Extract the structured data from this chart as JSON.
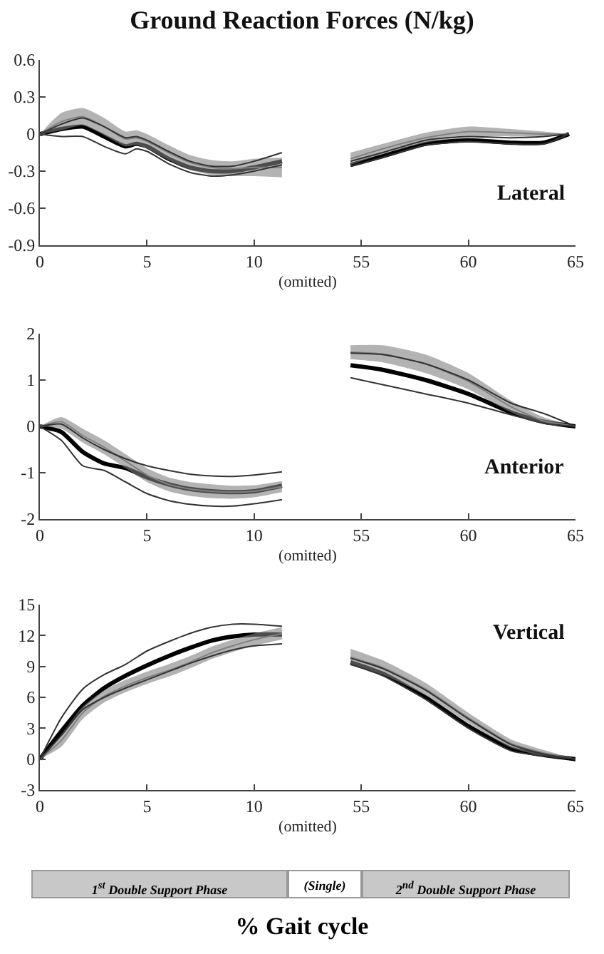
{
  "chart_data": [
    {
      "type": "line",
      "title": "Ground Reaction Forces (N/kg)",
      "xlabel": "(omitted)",
      "grid": false,
      "x": [
        0,
        1,
        2,
        3,
        4,
        4.5,
        5,
        6,
        7,
        8,
        9,
        10,
        11.3
      ],
      "xlim": [
        0,
        12.5
      ],
      "xticks": [
        0,
        5,
        10
      ],
      "ylim": [
        -0.9,
        0.6
      ],
      "yticks": [
        -0.9,
        -0.6,
        -0.3,
        0,
        0.3,
        0.6
      ],
      "series": [
        {
          "color": "#000000",
          "values": [
            0,
            0.04,
            0.06,
            -0.02,
            -0.1,
            -0.08,
            -0.1,
            -0.2,
            -0.27,
            -0.3,
            -0.3,
            -0.27,
            -0.22
          ]
        },
        {
          "color": "#808080",
          "values": [
            0,
            0.1,
            0.14,
            0.06,
            -0.04,
            -0.03,
            -0.06,
            -0.15,
            -0.23,
            -0.27,
            -0.28,
            -0.27,
            -0.27
          ],
          "lower": [
            0,
            0.03,
            0.07,
            -0.01,
            -0.1,
            -0.09,
            -0.12,
            -0.21,
            -0.29,
            -0.33,
            -0.34,
            -0.34,
            -0.35
          ],
          "upper": [
            0,
            0.17,
            0.21,
            0.13,
            0.02,
            0.03,
            0,
            -0.09,
            -0.17,
            -0.21,
            -0.22,
            -0.2,
            -0.19
          ]
        },
        {
          "color": "#333333",
          "values": [
            0,
            0.08,
            0.13,
            0.06,
            -0.03,
            -0.02,
            -0.05,
            -0.14,
            -0.22,
            -0.26,
            -0.26,
            -0.22,
            -0.15
          ]
        },
        {
          "color": "#333333",
          "values": [
            0,
            -0.02,
            -0.02,
            -0.1,
            -0.16,
            -0.12,
            -0.14,
            -0.24,
            -0.31,
            -0.34,
            -0.33,
            -0.3,
            -0.25
          ]
        }
      ]
    },
    {
      "type": "line",
      "annotations": [
        "Lateral"
      ],
      "grid": false,
      "tick_labels": "x",
      "x": [
        54.5,
        56,
        58,
        60,
        62,
        63.5,
        64.7
      ],
      "xlim": [
        52.5,
        65
      ],
      "xticks": [
        55,
        60,
        65
      ],
      "ylim": [
        -0.9,
        0.6
      ],
      "yticks": [
        -0.9,
        -0.6,
        -0.3,
        0,
        0.3,
        0.6
      ],
      "series": [
        {
          "color": "#000000",
          "values": [
            -0.25,
            -0.18,
            -0.08,
            -0.05,
            -0.07,
            -0.07,
            0
          ]
        },
        {
          "color": "#808080",
          "values": [
            -0.2,
            -0.12,
            -0.03,
            0.02,
            0.01,
            0,
            0
          ],
          "lower": [
            -0.25,
            -0.16,
            -0.07,
            -0.02,
            -0.02,
            -0.02,
            0
          ],
          "upper": [
            -0.15,
            -0.08,
            0.01,
            0.06,
            0.04,
            0.02,
            0
          ]
        },
        {
          "color": "#333333",
          "values": [
            -0.22,
            -0.15,
            -0.05,
            -0.02,
            -0.03,
            -0.02,
            0
          ]
        },
        {
          "color": "#333333",
          "values": [
            -0.26,
            -0.19,
            -0.09,
            -0.06,
            -0.08,
            -0.08,
            0
          ]
        }
      ]
    },
    {
      "type": "line",
      "xlabel": "(omitted)",
      "grid": false,
      "x": [
        0,
        1,
        2,
        3,
        4,
        5,
        6,
        7,
        8,
        9,
        10,
        11.3
      ],
      "xlim": [
        0,
        12.5
      ],
      "xticks": [
        0,
        5,
        10
      ],
      "ylim": [
        -2,
        2
      ],
      "yticks": [
        -2,
        -1,
        0,
        1,
        2
      ],
      "series": [
        {
          "color": "#000000",
          "values": [
            0,
            -0.12,
            -0.55,
            -0.8,
            -0.9,
            -1.1,
            -1.25,
            -1.35,
            -1.4,
            -1.42,
            -1.4,
            -1.28
          ]
        },
        {
          "color": "#808080",
          "values": [
            0,
            0.1,
            -0.2,
            -0.45,
            -0.75,
            -1.05,
            -1.25,
            -1.35,
            -1.4,
            -1.42,
            -1.4,
            -1.3
          ],
          "lower": [
            0,
            -0.05,
            -0.35,
            -0.6,
            -0.9,
            -1.2,
            -1.4,
            -1.5,
            -1.55,
            -1.56,
            -1.53,
            -1.42
          ],
          "upper": [
            0,
            0.2,
            -0.05,
            -0.3,
            -0.6,
            -0.9,
            -1.1,
            -1.2,
            -1.25,
            -1.28,
            -1.27,
            -1.18
          ]
        },
        {
          "color": "#333333",
          "values": [
            0,
            0.05,
            -0.25,
            -0.5,
            -0.7,
            -0.85,
            -0.95,
            -1.03,
            -1.07,
            -1.08,
            -1.05,
            -0.98
          ]
        },
        {
          "color": "#333333",
          "values": [
            0,
            -0.3,
            -0.85,
            -0.95,
            -1.2,
            -1.45,
            -1.6,
            -1.68,
            -1.72,
            -1.72,
            -1.67,
            -1.58
          ]
        }
      ]
    },
    {
      "type": "line",
      "annotations": [
        "Anterior"
      ],
      "grid": false,
      "tick_labels": "x",
      "x": [
        54.5,
        56,
        58,
        60,
        62,
        63.5,
        65
      ],
      "xlim": [
        52.5,
        65
      ],
      "xticks": [
        55,
        60,
        65
      ],
      "ylim": [
        -2,
        2
      ],
      "yticks": [
        -2,
        -1,
        0,
        1,
        2
      ],
      "series": [
        {
          "color": "#000000",
          "values": [
            1.32,
            1.22,
            1,
            0.7,
            0.3,
            0.1,
            0
          ]
        },
        {
          "color": "#808080",
          "values": [
            1.6,
            1.56,
            1.35,
            0.97,
            0.42,
            0.12,
            0
          ],
          "lower": [
            1.45,
            1.38,
            1.15,
            0.8,
            0.3,
            0.05,
            0
          ],
          "upper": [
            1.75,
            1.75,
            1.55,
            1.15,
            0.55,
            0.2,
            0
          ]
        },
        {
          "color": "#333333",
          "values": [
            1.58,
            1.55,
            1.35,
            1,
            0.5,
            0.28,
            0
          ]
        },
        {
          "color": "#333333",
          "values": [
            1.05,
            0.9,
            0.7,
            0.5,
            0.25,
            0.07,
            0
          ]
        }
      ]
    },
    {
      "type": "line",
      "xlabel": "(omitted)",
      "grid": false,
      "x": [
        0,
        1,
        2,
        3,
        4,
        5,
        6,
        7,
        8,
        9,
        10,
        11.3
      ],
      "xlim": [
        0,
        12.5
      ],
      "xticks": [
        0,
        5,
        10
      ],
      "ylim": [
        -3,
        15
      ],
      "yticks": [
        -3,
        0,
        3,
        6,
        9,
        12,
        15
      ],
      "series": [
        {
          "color": "#000000",
          "values": [
            0,
            2.7,
            5.2,
            6.9,
            8.1,
            9.1,
            10,
            10.8,
            11.5,
            11.9,
            12.1,
            12.1
          ]
        },
        {
          "color": "#808080",
          "values": [
            0,
            1.8,
            4.5,
            6.1,
            7.1,
            7.9,
            8.6,
            9.4,
            10.3,
            11,
            11.6,
            12.2
          ],
          "lower": [
            0,
            1.2,
            3.9,
            5.5,
            6.5,
            7.3,
            8,
            8.8,
            9.7,
            10.4,
            11,
            11.6
          ],
          "upper": [
            0,
            2.4,
            5.1,
            6.7,
            7.7,
            8.5,
            9.2,
            10,
            10.9,
            11.6,
            12.2,
            12.8
          ]
        },
        {
          "color": "#333333",
          "values": [
            0,
            4,
            6.8,
            8.2,
            9.2,
            10.5,
            11.4,
            12.2,
            12.8,
            13.1,
            13.1,
            12.9
          ]
        },
        {
          "color": "#333333",
          "values": [
            0,
            2.3,
            4.8,
            6,
            6.9,
            7.7,
            8.5,
            9.3,
            10,
            10.6,
            11,
            11.2
          ]
        }
      ]
    },
    {
      "type": "line",
      "annotations": [
        "Vertical",
        "1$^{st}$ Double Support Phase",
        "(Single)",
        "2$^{nd}$ Double Support Phase",
        "% Gait cycle"
      ],
      "grid": false,
      "tick_labels": "x",
      "x": [
        54.5,
        56,
        58,
        60,
        62,
        63.5,
        65
      ],
      "xlim": [
        52.5,
        65
      ],
      "xticks": [
        55,
        60,
        65
      ],
      "ylim": [
        -3,
        15
      ],
      "yticks": [
        -3,
        0,
        3,
        6,
        9,
        12,
        15
      ],
      "series": [
        {
          "color": "#000000",
          "values": [
            9.4,
            8.3,
            6,
            3.2,
            1,
            0.4,
            0
          ]
        },
        {
          "color": "#808080",
          "values": [
            9.9,
            8.9,
            6.8,
            4,
            1.5,
            0.6,
            0
          ],
          "lower": [
            9.1,
            8.2,
            6.2,
            3.5,
            1.1,
            0.3,
            0
          ],
          "upper": [
            10.7,
            9.6,
            7.4,
            4.5,
            1.9,
            0.9,
            0
          ]
        },
        {
          "color": "#333333",
          "values": [
            9.8,
            8.8,
            6.7,
            3.9,
            1.4,
            0.5,
            0
          ]
        },
        {
          "color": "#333333",
          "values": [
            9.2,
            8.1,
            5.8,
            3,
            0.8,
            0.3,
            0
          ]
        }
      ]
    }
  ]
}
